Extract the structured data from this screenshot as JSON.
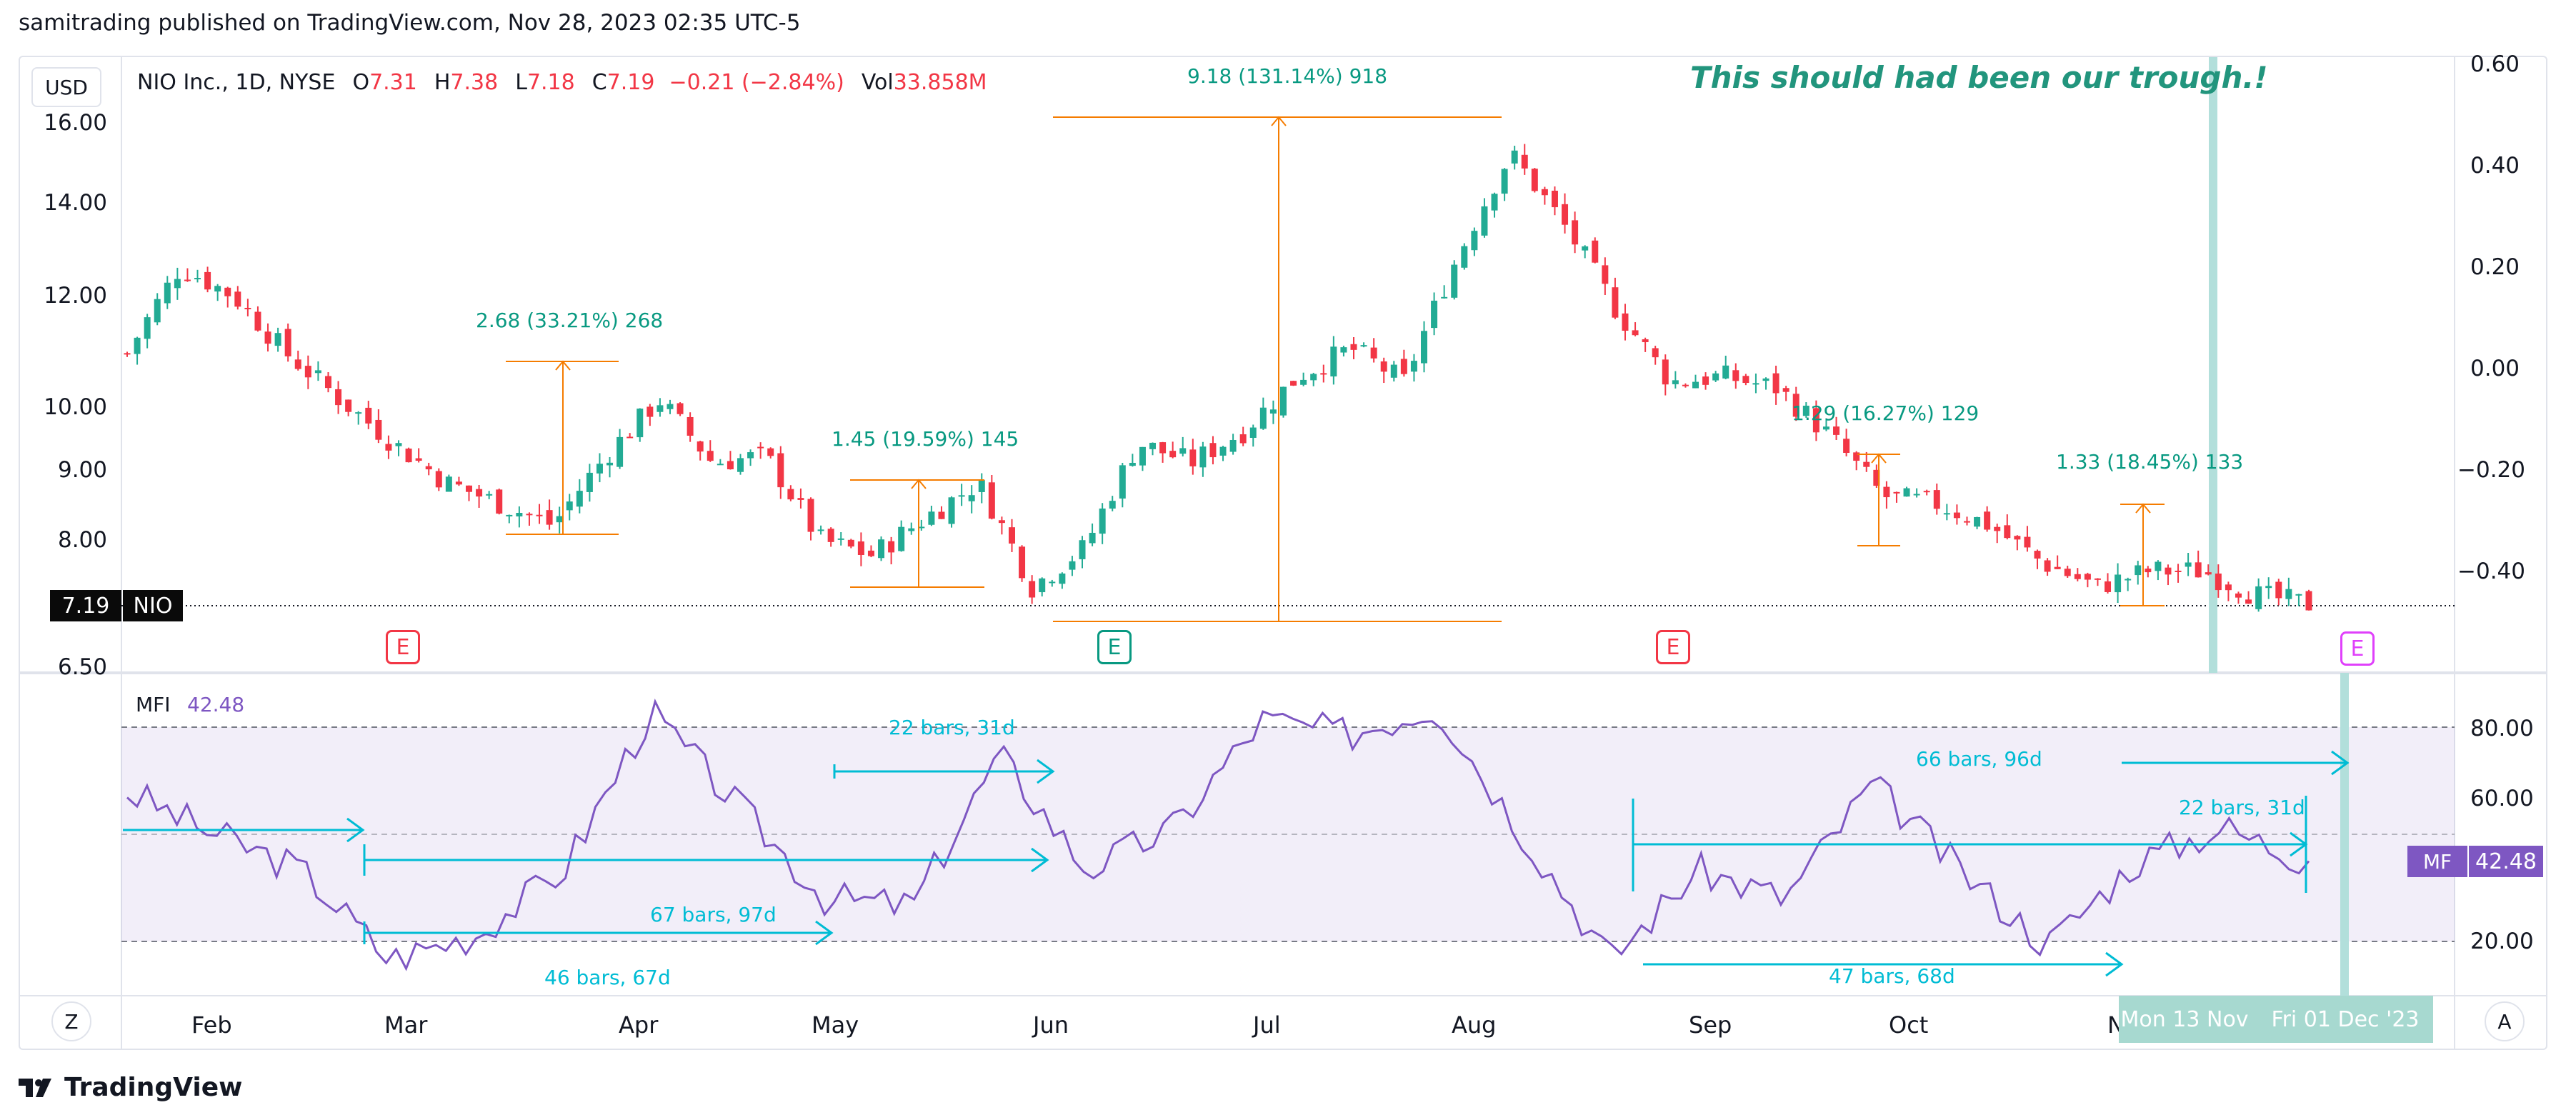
{
  "header": {
    "published_line": "samitrading published on TradingView.com, Nov 28, 2023 02:35 UTC-5"
  },
  "currency_button": "USD",
  "legend": {
    "symbol": "NIO Inc., 1D, NYSE",
    "o_label": "O",
    "o_value": "7.31",
    "h_label": "H",
    "h_value": "7.38",
    "l_label": "L",
    "l_value": "7.18",
    "c_label": "C",
    "c_value": "7.19",
    "change": "−0.21 (−2.84%)",
    "vol_label": "Vol",
    "vol_value": "33.858M"
  },
  "annotation_comment": "This should had been our trough.!",
  "price_axis_left": [
    "16.00",
    "14.00",
    "12.00",
    "10.00",
    "9.00",
    "8.00",
    "6.50"
  ],
  "price_axis_right": [
    "0.60",
    "0.40",
    "0.20",
    "0.00",
    "−0.20",
    "−0.40"
  ],
  "last_price": {
    "value": "7.19",
    "symbol": "NIO"
  },
  "earnings_marker": "E",
  "measurements": [
    {
      "label": "2.68 (33.21%) 268"
    },
    {
      "label": "1.45 (19.59%) 145"
    },
    {
      "label": "9.18 (131.14%) 918"
    },
    {
      "label": "1.29 (16.27%) 129"
    },
    {
      "label": "1.33 (18.45%) 133"
    }
  ],
  "indicator": {
    "name": "MFI",
    "value": "42.48",
    "badge": "MF",
    "axis": [
      "80.00",
      "60.00",
      "20.00"
    ]
  },
  "bar_ranges": [
    {
      "label": "22 bars, 31d"
    },
    {
      "label": "67 bars, 97d"
    },
    {
      "label": "46 bars, 67d"
    },
    {
      "label": "66 bars, 96d"
    },
    {
      "label": "22 bars, 31d"
    },
    {
      "label": "47 bars, 68d"
    }
  ],
  "time_axis": [
    "Feb",
    "Mar",
    "Apr",
    "May",
    "Jun",
    "Jul",
    "Aug",
    "Sep",
    "Oct",
    "Nov"
  ],
  "date_range": {
    "start": "Mon 13 Nov '23",
    "end": "Fri 01 Dec '23"
  },
  "bottom_left_button": "Z",
  "bottom_right_button": "A",
  "brand": "TradingView",
  "colors": {
    "up": "#22ab94",
    "down": "#f23645",
    "measure": "#f57c00",
    "measure_text": "#089981",
    "arrow": "#00bcd4",
    "mfi_line": "#7e57c2",
    "highlight": "#b2dfdb"
  },
  "chart_data": {
    "type": "candlestick",
    "symbol": "NIO",
    "interval": "1D",
    "ylim": [
      6.5,
      16.5
    ],
    "candles_sampled": [
      {
        "x": "Jan 23",
        "c": 10.9
      },
      {
        "x": "Jan 27",
        "c": 12.6
      },
      {
        "x": "Jan 31",
        "c": 12.0
      },
      {
        "x": "Feb 8",
        "c": 10.9
      },
      {
        "x": "Feb 16",
        "c": 10.1
      },
      {
        "x": "Feb 24",
        "c": 9.4
      },
      {
        "x": "Mar 3",
        "c": 8.8
      },
      {
        "x": "Mar 10",
        "c": 8.5
      },
      {
        "x": "Mar 17",
        "c": 8.2
      },
      {
        "x": "Mar 24",
        "c": 9.2
      },
      {
        "x": "Mar 31",
        "c": 10.1
      },
      {
        "x": "Apr 10",
        "c": 9.1
      },
      {
        "x": "Apr 20",
        "c": 9.2
      },
      {
        "x": "Apr 28",
        "c": 8.0
      },
      {
        "x": "May 5",
        "c": 7.8
      },
      {
        "x": "May 15",
        "c": 8.3
      },
      {
        "x": "May 24",
        "c": 8.8
      },
      {
        "x": "Jun 1",
        "c": 7.4
      },
      {
        "x": "Jun 8",
        "c": 7.9
      },
      {
        "x": "Jun 15",
        "c": 9.4
      },
      {
        "x": "Jun 22",
        "c": 9.1
      },
      {
        "x": "Jun 29",
        "c": 9.6
      },
      {
        "x": "Jul 5",
        "c": 10.5
      },
      {
        "x": "Jul 12",
        "c": 11.0
      },
      {
        "x": "Jul 19",
        "c": 10.4
      },
      {
        "x": "Jul 25",
        "c": 12.8
      },
      {
        "x": "Aug 1",
        "c": 15.2
      },
      {
        "x": "Aug 8",
        "c": 13.5
      },
      {
        "x": "Aug 15",
        "c": 11.7
      },
      {
        "x": "Aug 22",
        "c": 10.4
      },
      {
        "x": "Sep 1",
        "c": 10.5
      },
      {
        "x": "Sep 11",
        "c": 10.3
      },
      {
        "x": "Sep 18",
        "c": 9.5
      },
      {
        "x": "Sep 25",
        "c": 8.6
      },
      {
        "x": "Oct 3",
        "c": 8.5
      },
      {
        "x": "Oct 12",
        "c": 8.2
      },
      {
        "x": "Oct 20",
        "c": 7.7
      },
      {
        "x": "Oct 30",
        "c": 7.4
      },
      {
        "x": "Nov 6",
        "c": 7.6
      },
      {
        "x": "Nov 14",
        "c": 7.6
      },
      {
        "x": "Nov 21",
        "c": 7.3
      },
      {
        "x": "Nov 28",
        "c": 7.19
      }
    ],
    "mfi_sampled": [
      {
        "x": "Jan 23",
        "v": 62
      },
      {
        "x": "Feb 1",
        "v": 50
      },
      {
        "x": "Feb 15",
        "v": 40
      },
      {
        "x": "Feb 27",
        "v": 15
      },
      {
        "x": "Mar 10",
        "v": 22
      },
      {
        "x": "Mar 20",
        "v": 40
      },
      {
        "x": "Apr 1",
        "v": 84
      },
      {
        "x": "Apr 15",
        "v": 58
      },
      {
        "x": "Apr 28",
        "v": 32
      },
      {
        "x": "May 10",
        "v": 30
      },
      {
        "x": "May 25",
        "v": 72
      },
      {
        "x": "Jun 1",
        "v": 40
      },
      {
        "x": "Jun 15",
        "v": 52
      },
      {
        "x": "Jul 1",
        "v": 82
      },
      {
        "x": "Jul 15",
        "v": 78
      },
      {
        "x": "Aug 1",
        "v": 86
      },
      {
        "x": "Aug 15",
        "v": 50
      },
      {
        "x": "Aug 25",
        "v": 15
      },
      {
        "x": "Sep 10",
        "v": 40
      },
      {
        "x": "Sep 25",
        "v": 32
      },
      {
        "x": "Oct 5",
        "v": 64
      },
      {
        "x": "Oct 20",
        "v": 40
      },
      {
        "x": "Nov 1",
        "v": 19
      },
      {
        "x": "Nov 15",
        "v": 42
      },
      {
        "x": "Nov 23",
        "v": 52
      },
      {
        "x": "Nov 28",
        "v": 42.48
      }
    ],
    "mfi_levels": [
      80,
      50,
      20
    ]
  }
}
